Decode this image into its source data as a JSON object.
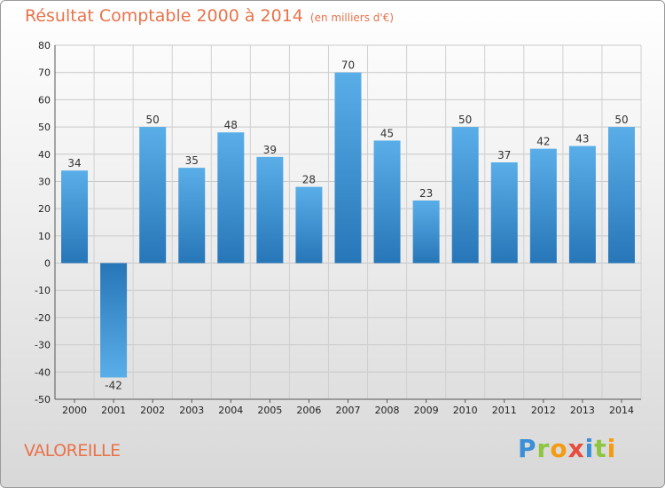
{
  "header": {
    "title": "Résultat Comptable 2000 à 2014",
    "subtitle": "(en milliers d'€)"
  },
  "footer": {
    "commune": "VALOREILLE",
    "logo": "Proxiti"
  },
  "colors": {
    "accent": "#e8734a",
    "bar_light": "#5aaee8",
    "bar_dark": "#2776b8"
  },
  "chart_data": {
    "type": "bar",
    "title": "Résultat Comptable 2000 à 2014",
    "subtitle": "(en milliers d'€)",
    "categories": [
      "2000",
      "2001",
      "2002",
      "2003",
      "2004",
      "2005",
      "2006",
      "2007",
      "2008",
      "2009",
      "2010",
      "2011",
      "2012",
      "2013",
      "2014"
    ],
    "values": [
      34,
      -42,
      50,
      35,
      48,
      39,
      28,
      70,
      45,
      23,
      50,
      37,
      42,
      43,
      50
    ],
    "yticks": [
      -50,
      -40,
      -30,
      -20,
      -10,
      0,
      10,
      20,
      30,
      40,
      50,
      60,
      70,
      80
    ],
    "ylim": [
      -50,
      80
    ],
    "grid": true,
    "xlabel": "",
    "ylabel": ""
  }
}
